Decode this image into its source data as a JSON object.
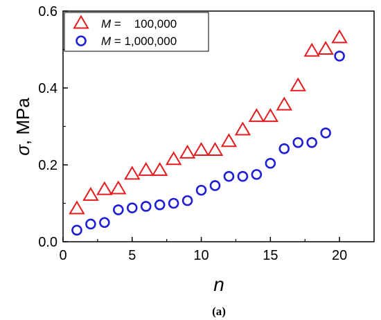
{
  "chart_data": {
    "type": "scatter",
    "caption": "(a)",
    "xlabel": "n",
    "ylabel": "σ, MPa",
    "xlim": [
      0,
      22.5
    ],
    "ylim": [
      0,
      0.6
    ],
    "x_ticks": [
      0,
      5,
      10,
      15,
      20
    ],
    "y_ticks": [
      0.0,
      0.2,
      0.4,
      0.6
    ],
    "x_tick_labels": [
      "0",
      "5",
      "10",
      "15",
      "20"
    ],
    "y_tick_labels": [
      "0.0",
      "0.2",
      "0.4",
      "0.6"
    ],
    "grid": false,
    "legend_position": "top-left",
    "series": [
      {
        "name": "M =    100,000",
        "marker": "triangle",
        "color": "#e41a1c",
        "x": [
          1,
          2,
          3,
          4,
          5,
          6,
          7,
          8,
          9,
          10,
          11,
          12,
          13,
          14,
          15,
          16,
          17,
          18,
          19,
          20
        ],
        "y": [
          0.085,
          0.12,
          0.135,
          0.137,
          0.175,
          0.185,
          0.185,
          0.213,
          0.23,
          0.237,
          0.237,
          0.26,
          0.29,
          0.325,
          0.325,
          0.355,
          0.405,
          0.495,
          0.5,
          0.53
        ]
      },
      {
        "name": "M = 1,000,000",
        "marker": "circle",
        "color": "#1f1fd6",
        "x": [
          1,
          2,
          3,
          4,
          5,
          6,
          7,
          8,
          9,
          10,
          11,
          12,
          13,
          14,
          15,
          16,
          17,
          18,
          19,
          20
        ],
        "y": [
          0.03,
          0.046,
          0.05,
          0.083,
          0.088,
          0.092,
          0.096,
          0.1,
          0.107,
          0.134,
          0.146,
          0.17,
          0.17,
          0.175,
          0.204,
          0.242,
          0.258,
          0.258,
          0.283,
          0.483
        ]
      }
    ]
  }
}
